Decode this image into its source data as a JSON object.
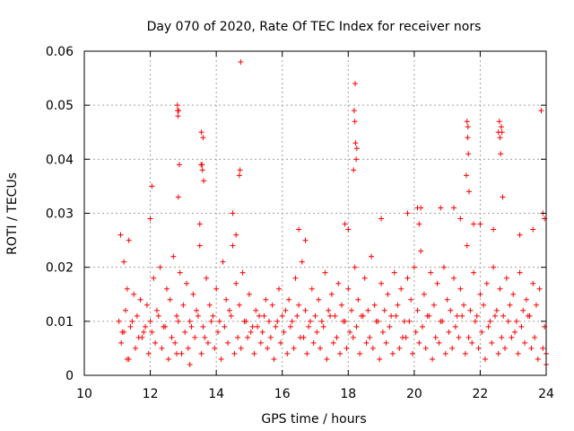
{
  "chart_data": {
    "type": "scatter",
    "title": "Day 070 of 2020, Rate Of TEC Index for receiver nors",
    "xlabel": "GPS time / hours",
    "ylabel": "ROTI / TECUs",
    "xlim": [
      10,
      24
    ],
    "ylim": [
      0,
      0.06
    ],
    "xticks": [
      10,
      12,
      14,
      16,
      18,
      20,
      22,
      24
    ],
    "xtick_labels": [
      "10",
      "12",
      "14",
      "16",
      "18",
      "20",
      "22",
      "24"
    ],
    "yticks": [
      0,
      0.01,
      0.02,
      0.03,
      0.04,
      0.05,
      0.06
    ],
    "ytick_labels": [
      "0",
      "0.01",
      "0.02",
      "0.03",
      "0.04",
      "0.05",
      "0.06"
    ],
    "grid": true,
    "marker": "+",
    "color": "#ff0000",
    "series": [
      {
        "name": "ROTI",
        "x": [
          11.05,
          11.1,
          11.15,
          11.2,
          11.25,
          11.3,
          11.4,
          11.5,
          11.6,
          11.7,
          11.8,
          11.9,
          12.0,
          12.1,
          12.2,
          12.3,
          12.4,
          12.5,
          12.6,
          12.7,
          12.8,
          12.9,
          13.0,
          13.1,
          13.2,
          13.3,
          13.4,
          13.5,
          13.6,
          13.7,
          13.8,
          13.9,
          14.0,
          14.1,
          14.2,
          14.3,
          14.4,
          14.5,
          14.6,
          14.7,
          14.8,
          14.9,
          15.0,
          15.1,
          15.2,
          15.3,
          15.4,
          15.5,
          15.6,
          15.7,
          15.8,
          15.9,
          16.0,
          16.1,
          16.2,
          16.3,
          16.4,
          16.5,
          16.6,
          16.7,
          16.8,
          16.9,
          17.0,
          17.1,
          17.2,
          17.3,
          17.4,
          17.5,
          17.6,
          17.7,
          17.8,
          17.9,
          18.0,
          18.1,
          18.2,
          18.3,
          18.4,
          18.5,
          18.6,
          18.7,
          18.8,
          18.9,
          19.0,
          19.1,
          19.2,
          19.3,
          19.4,
          19.5,
          19.6,
          19.7,
          19.8,
          19.9,
          20.0,
          20.1,
          20.2,
          20.3,
          20.4,
          20.5,
          20.6,
          20.7,
          20.8,
          20.9,
          21.0,
          21.1,
          21.2,
          21.3,
          21.4,
          21.5,
          21.6,
          21.7,
          21.8,
          21.9,
          22.0,
          22.1,
          22.2,
          22.3,
          22.4,
          22.5,
          22.6,
          22.7,
          22.8,
          22.9,
          23.0,
          23.1,
          23.2,
          23.3,
          23.4,
          23.5,
          23.6,
          23.7,
          23.8,
          23.9,
          24.0,
          11.12,
          11.35,
          11.55,
          11.75,
          11.95,
          12.15,
          12.35,
          12.55,
          12.75,
          12.95,
          13.15,
          13.35,
          13.55,
          13.75,
          13.95,
          14.15,
          14.35,
          14.55,
          14.75,
          14.95,
          15.15,
          15.35,
          15.55,
          15.75,
          15.95,
          16.15,
          16.35,
          16.55,
          16.75,
          16.95,
          17.15,
          17.35,
          17.55,
          17.75,
          17.95,
          18.15,
          18.35,
          18.55,
          18.75,
          18.95,
          19.15,
          19.35,
          19.55,
          19.75,
          19.95,
          20.15,
          20.35,
          20.55,
          20.75,
          20.95,
          21.15,
          21.35,
          21.55,
          21.75,
          21.95,
          22.15,
          22.35,
          22.55,
          22.75,
          22.95,
          23.15,
          23.35,
          23.55,
          23.75,
          23.95,
          11.2,
          11.45,
          11.65,
          11.85,
          12.05,
          12.25,
          12.45,
          12.65,
          12.85,
          13.05,
          13.25,
          13.45,
          13.65,
          13.85,
          14.05,
          14.25,
          14.45,
          14.65,
          14.85,
          15.05,
          15.25,
          15.45,
          15.65,
          15.85,
          16.05,
          16.25,
          16.45,
          16.65,
          16.85,
          17.05,
          17.25,
          17.45,
          17.65,
          17.85,
          18.05,
          18.25,
          18.45,
          18.65,
          18.85,
          19.05,
          19.25,
          19.45,
          19.65,
          19.85,
          20.05,
          20.25,
          20.45,
          20.65,
          20.85,
          21.05,
          21.25,
          21.45,
          21.65,
          21.85,
          22.05,
          22.25,
          22.45,
          22.65,
          22.85,
          23.05,
          23.25,
          23.45,
          23.65,
          23.85,
          12.82,
          12.84,
          12.86,
          12.88,
          12.85,
          12.83,
          13.55,
          13.57,
          13.6,
          13.58,
          13.62,
          13.54,
          14.7,
          14.72,
          14.74,
          18.18,
          18.2,
          18.22,
          18.24,
          18.16,
          18.26,
          18.21,
          21.6,
          21.62,
          21.64,
          21.66,
          21.58,
          21.63,
          22.55,
          22.58,
          22.6,
          22.62,
          22.64,
          22.66,
          22.68,
          20.1,
          20.15,
          20.2,
          23.9,
          23.95,
          24.0,
          11.3,
          11.35,
          12.0,
          12.05,
          12.8,
          13.2,
          13.5,
          14.5,
          14.6,
          16.5,
          16.7,
          17.9,
          18.0,
          19.0,
          19.8,
          20.8,
          21.2,
          21.4,
          21.8,
          22.0,
          22.4,
          23.2,
          23.6
        ],
        "y": [
          0.01,
          0.026,
          0.008,
          0.021,
          0.012,
          0.016,
          0.009,
          0.015,
          0.011,
          0.014,
          0.008,
          0.013,
          0.01,
          0.018,
          0.012,
          0.02,
          0.009,
          0.016,
          0.014,
          0.022,
          0.011,
          0.019,
          0.013,
          0.017,
          0.01,
          0.015,
          0.012,
          0.024,
          0.009,
          0.018,
          0.013,
          0.011,
          0.016,
          0.01,
          0.021,
          0.014,
          0.012,
          0.024,
          0.017,
          0.013,
          0.019,
          0.01,
          0.015,
          0.009,
          0.012,
          0.011,
          0.008,
          0.014,
          0.01,
          0.013,
          0.009,
          0.016,
          0.011,
          0.012,
          0.014,
          0.01,
          0.018,
          0.013,
          0.021,
          0.012,
          0.009,
          0.016,
          0.011,
          0.014,
          0.01,
          0.019,
          0.012,
          0.015,
          0.011,
          0.017,
          0.013,
          0.01,
          0.016,
          0.012,
          0.02,
          0.014,
          0.011,
          0.018,
          0.012,
          0.022,
          0.013,
          0.01,
          0.017,
          0.012,
          0.015,
          0.011,
          0.019,
          0.013,
          0.016,
          0.01,
          0.018,
          0.014,
          0.02,
          0.012,
          0.023,
          0.015,
          0.011,
          0.019,
          0.013,
          0.017,
          0.01,
          0.02,
          0.014,
          0.012,
          0.018,
          0.011,
          0.016,
          0.013,
          0.024,
          0.012,
          0.019,
          0.011,
          0.015,
          0.013,
          0.017,
          0.01,
          0.02,
          0.012,
          0.016,
          0.011,
          0.018,
          0.013,
          0.015,
          0.01,
          0.019,
          0.012,
          0.014,
          0.011,
          0.017,
          0.013,
          0.016,
          0.005,
          0.004,
          0.006,
          0.003,
          0.005,
          0.007,
          0.004,
          0.006,
          0.005,
          0.003,
          0.006,
          0.004,
          0.005,
          0.007,
          0.004,
          0.006,
          0.005,
          0.003,
          0.006,
          0.004,
          0.005,
          0.007,
          0.004,
          0.006,
          0.005,
          0.003,
          0.006,
          0.004,
          0.005,
          0.007,
          0.004,
          0.006,
          0.005,
          0.003,
          0.006,
          0.004,
          0.005,
          0.007,
          0.004,
          0.006,
          0.005,
          0.003,
          0.006,
          0.004,
          0.005,
          0.007,
          0.004,
          0.006,
          0.005,
          0.003,
          0.006,
          0.004,
          0.005,
          0.007,
          0.004,
          0.006,
          0.005,
          0.003,
          0.006,
          0.004,
          0.005,
          0.007,
          0.004,
          0.006,
          0.005,
          0.003,
          0.009,
          0.008,
          0.01,
          0.007,
          0.009,
          0.008,
          0.011,
          0.009,
          0.007,
          0.01,
          0.008,
          0.009,
          0.011,
          0.007,
          0.01,
          0.008,
          0.009,
          0.011,
          0.007,
          0.01,
          0.008,
          0.009,
          0.011,
          0.007,
          0.01,
          0.008,
          0.009,
          0.011,
          0.007,
          0.01,
          0.008,
          0.009,
          0.011,
          0.007,
          0.01,
          0.008,
          0.009,
          0.011,
          0.007,
          0.01,
          0.008,
          0.009,
          0.011,
          0.007,
          0.01,
          0.008,
          0.009,
          0.011,
          0.007,
          0.01,
          0.008,
          0.009,
          0.011,
          0.007,
          0.01,
          0.008,
          0.009,
          0.011,
          0.007,
          0.01,
          0.008,
          0.009,
          0.011,
          0.007,
          0.049,
          0.05,
          0.048,
          0.049,
          0.039,
          0.033,
          0.049,
          0.045,
          0.039,
          0.044,
          0.038,
          0.036,
          0.039,
          0.037,
          0.038,
          0.058,
          0.049,
          0.047,
          0.043,
          0.04,
          0.038,
          0.042,
          0.054,
          0.047,
          0.044,
          0.041,
          0.034,
          0.037,
          0.046,
          0.045,
          0.047,
          0.044,
          0.041,
          0.046,
          0.045,
          0.033,
          0.031,
          0.028,
          0.031,
          0.03,
          0.029,
          0.002,
          0.003,
          0.025,
          0.029,
          0.035,
          0.004,
          0.002,
          0.028,
          0.03,
          0.026,
          0.027,
          0.025,
          0.028,
          0.027,
          0.029,
          0.03,
          0.031,
          0.031,
          0.029,
          0.028,
          0.028,
          0.027,
          0.026,
          0.027
        ]
      }
    ]
  }
}
